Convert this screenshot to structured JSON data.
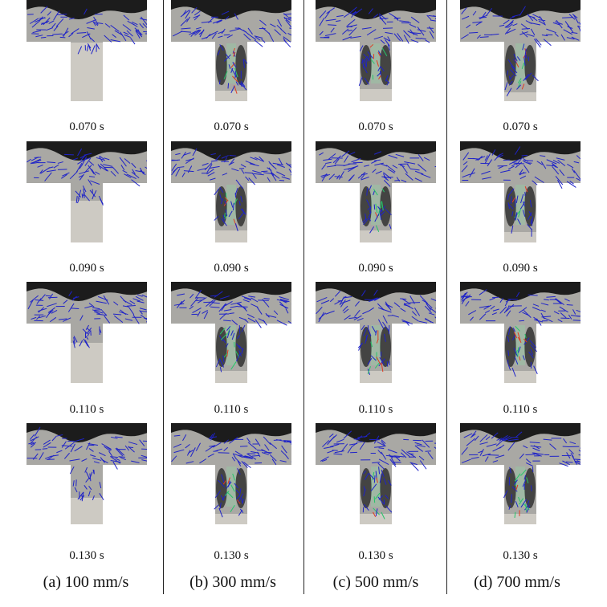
{
  "figure": {
    "columns": [
      {
        "label": "(a) 100 mm/s",
        "speed_mm_s": 100,
        "panels": [
          {
            "time": "0.070 s",
            "fill_fraction": 0.02,
            "vortices": false
          },
          {
            "time": "0.090 s",
            "fill_fraction": 0.3,
            "vortices": false
          },
          {
            "time": "0.110 s",
            "fill_fraction": 0.33,
            "vortices": false
          },
          {
            "time": "0.130 s",
            "fill_fraction": 0.56,
            "vortices": false
          }
        ]
      },
      {
        "label": "(b) 300 mm/s",
        "speed_mm_s": 300,
        "panels": [
          {
            "time": "0.070 s",
            "fill_fraction": 0.82,
            "vortices": true
          },
          {
            "time": "0.090 s",
            "fill_fraction": 0.8,
            "vortices": true
          },
          {
            "time": "0.110 s",
            "fill_fraction": 0.8,
            "vortices": true
          },
          {
            "time": "0.130 s",
            "fill_fraction": 0.83,
            "vortices": true
          }
        ]
      },
      {
        "label": "(c) 500 mm/s",
        "speed_mm_s": 500,
        "panels": [
          {
            "time": "0.070 s",
            "fill_fraction": 0.8,
            "vortices": true
          },
          {
            "time": "0.090 s",
            "fill_fraction": 0.8,
            "vortices": true
          },
          {
            "time": "0.110 s",
            "fill_fraction": 0.8,
            "vortices": true
          },
          {
            "time": "0.130 s",
            "fill_fraction": 0.83,
            "vortices": true
          }
        ]
      },
      {
        "label": "(d) 700 mm/s",
        "speed_mm_s": 700,
        "panels": [
          {
            "time": "0.070 s",
            "fill_fraction": 0.85,
            "vortices": true
          },
          {
            "time": "0.090 s",
            "fill_fraction": 0.82,
            "vortices": true
          },
          {
            "time": "0.110 s",
            "fill_fraction": 0.8,
            "vortices": true
          },
          {
            "time": "0.130 s",
            "fill_fraction": 0.83,
            "vortices": true
          }
        ]
      }
    ],
    "colors": {
      "die_top": "#1c1c1c",
      "melt": "#a9a8a4",
      "empty_cavity": "#cdcac3",
      "vector_low": "#1f23c8",
      "vector_mid": "#27c46a",
      "vector_high": "#e13a20",
      "separator": "#222222"
    }
  }
}
